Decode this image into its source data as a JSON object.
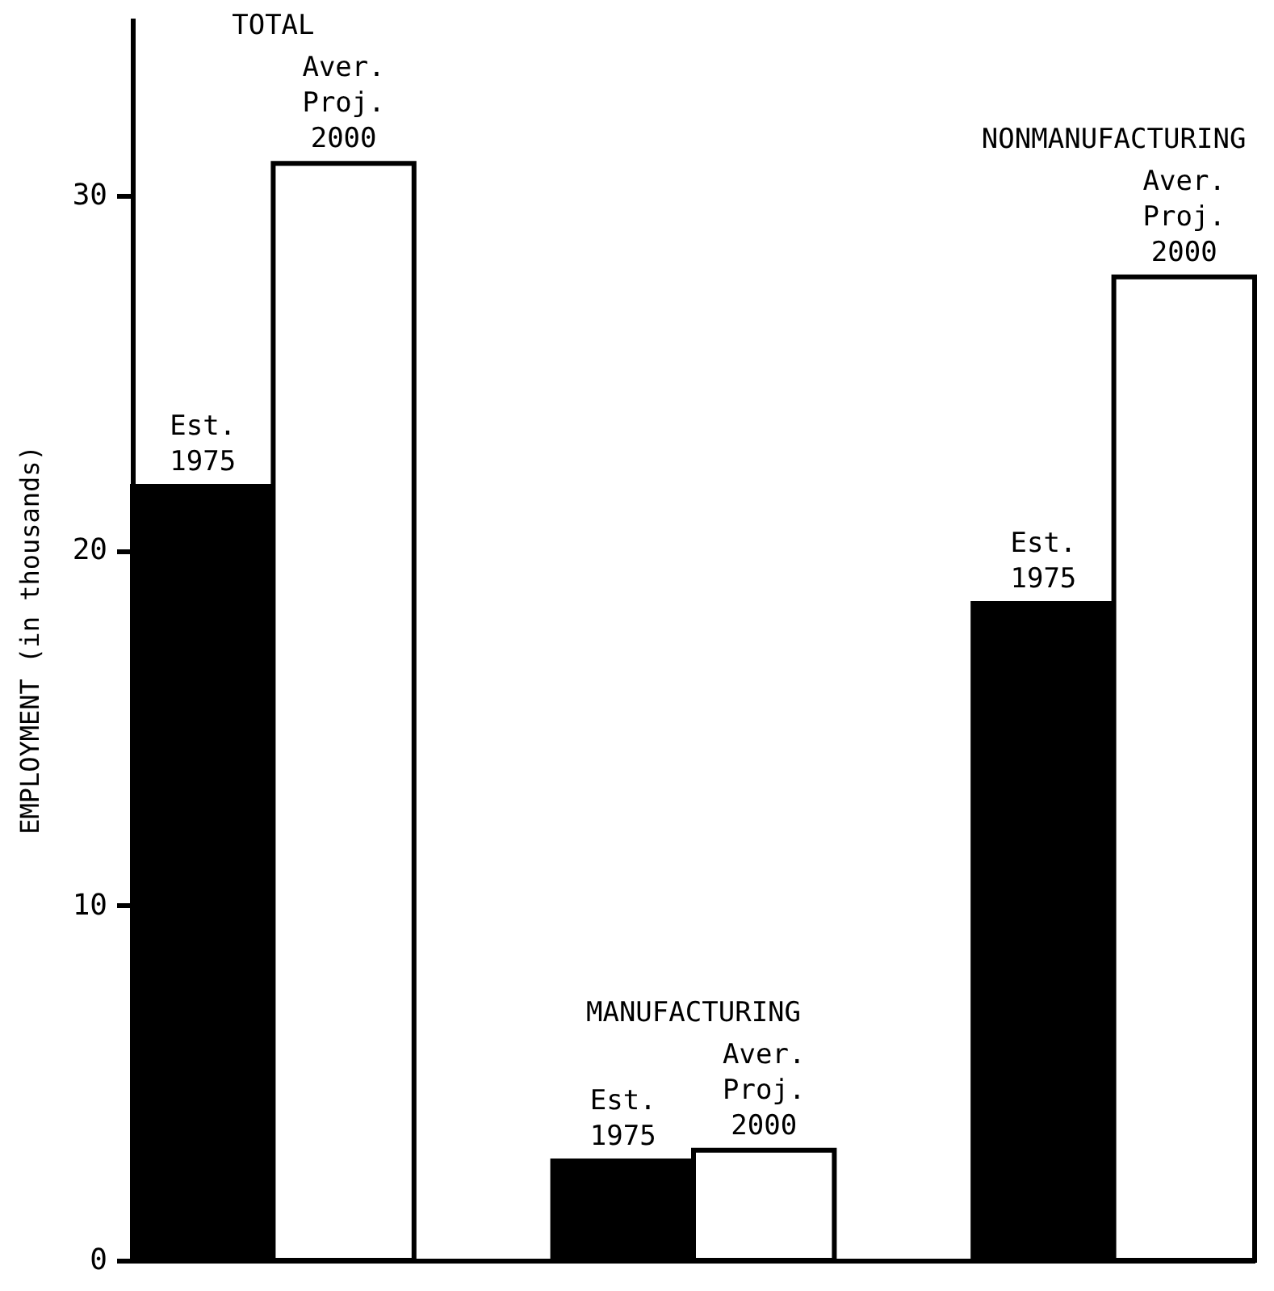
{
  "chart_data": {
    "type": "bar",
    "ylabel": "EMPLOYMENT (in thousands)",
    "categories": [
      "TOTAL",
      "MANUFACTURING",
      "NONMANUFACTURING"
    ],
    "series": [
      {
        "name": "Est. 1975",
        "color": "#000000",
        "values": [
          21.8,
          2.8,
          18.5
        ]
      },
      {
        "name": "Aver. Proj. 2000",
        "color": "#ffffff",
        "values": [
          30.9,
          3.1,
          27.7
        ]
      }
    ],
    "ylim": [
      0,
      35
    ],
    "yticks": [
      0,
      10,
      20,
      30
    ],
    "grid": false,
    "legend": false,
    "tick_labels": "y"
  }
}
